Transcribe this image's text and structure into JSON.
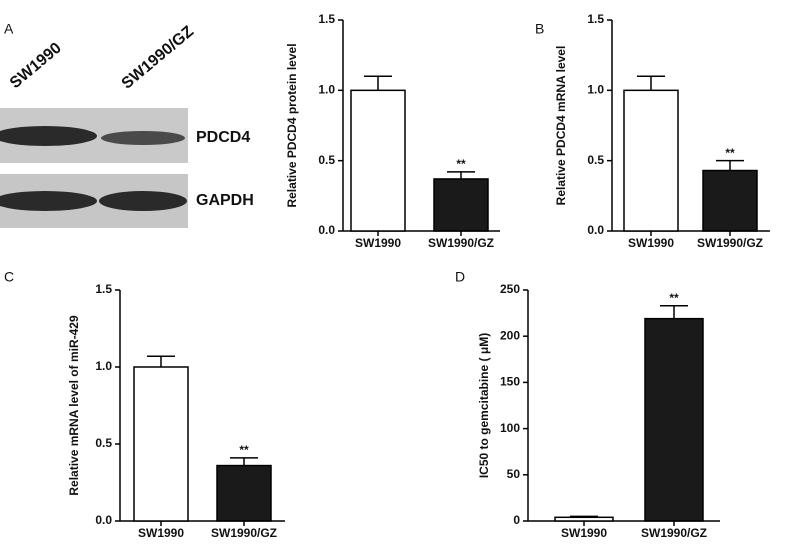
{
  "panel_labels": [
    "A",
    "B",
    "C",
    "D"
  ],
  "blot": {
    "lanes": [
      "SW1990",
      "SW1990/GZ"
    ],
    "bands": [
      "PDCD4",
      "GAPDH"
    ]
  },
  "chart_data": [
    {
      "type": "bar",
      "y_label": "Relative PDCD4 protein  level",
      "categories": [
        "SW1990",
        "SW1990/GZ"
      ],
      "values": [
        1.0,
        0.37
      ],
      "errors": [
        0.1,
        0.05
      ],
      "significance": [
        null,
        "**"
      ],
      "colors": [
        "#ffffff",
        "#1a1a1a"
      ],
      "ylim": [
        0,
        1.5
      ],
      "yticks": [
        {
          "value": 0,
          "label": "0.0"
        },
        0.5,
        {
          "value": 1,
          "label": "1.0"
        },
        1.5
      ]
    },
    {
      "type": "bar",
      "y_label": "Relative PDCD4 mRNA level",
      "categories": [
        "SW1990",
        "SW1990/GZ"
      ],
      "values": [
        1.0,
        0.43
      ],
      "errors": [
        0.1,
        0.07
      ],
      "significance": [
        null,
        "**"
      ],
      "colors": [
        "#ffffff",
        "#1a1a1a"
      ],
      "ylim": [
        0,
        1.5
      ],
      "yticks": [
        {
          "value": 0,
          "label": "0.0"
        },
        0.5,
        {
          "value": 1,
          "label": "1.0"
        },
        1.5
      ]
    },
    {
      "type": "bar",
      "y_label": "Relative mRNA level of miR-429",
      "categories": [
        "SW1990",
        "SW1990/GZ"
      ],
      "values": [
        1.0,
        0.36
      ],
      "errors": [
        0.07,
        0.05
      ],
      "significance": [
        null,
        "**"
      ],
      "colors": [
        "#ffffff",
        "#1a1a1a"
      ],
      "ylim": [
        0,
        1.5
      ],
      "yticks": [
        {
          "value": 0,
          "label": "0.0"
        },
        0.5,
        {
          "value": 1,
          "label": "1.0"
        },
        1.5
      ]
    },
    {
      "type": "bar",
      "y_label": "IC50 to gemcitabine ( μM)",
      "categories": [
        "SW1990",
        "SW1990/GZ"
      ],
      "values": [
        4,
        219
      ],
      "errors": [
        1,
        14
      ],
      "significance": [
        null,
        "**"
      ],
      "colors": [
        "#ffffff",
        "#1a1a1a"
      ],
      "ylim": [
        0,
        250
      ],
      "yticks": [
        0,
        50,
        100,
        150,
        200,
        250
      ]
    }
  ]
}
